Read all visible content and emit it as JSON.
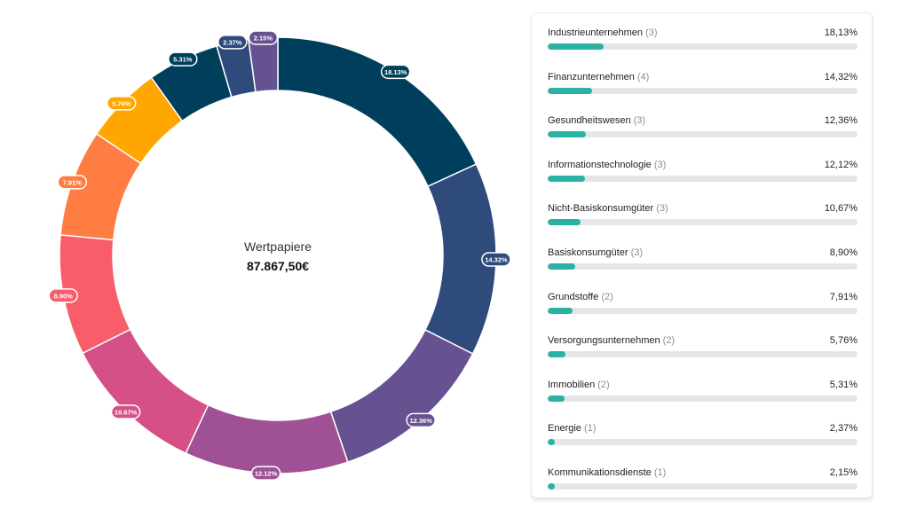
{
  "center": {
    "title": "Wertpapiere",
    "value": "87.867,50€"
  },
  "chart_data": {
    "type": "pie",
    "variant": "donut",
    "slices": [
      {
        "label": "18.13%",
        "value": 18.13,
        "color": "#003f5c"
      },
      {
        "label": "14.32%",
        "value": 14.32,
        "color": "#2f4b7c"
      },
      {
        "label": "12.36%",
        "value": 12.36,
        "color": "#665191"
      },
      {
        "label": "12.12%",
        "value": 12.12,
        "color": "#a05195"
      },
      {
        "label": "10.67%",
        "value": 10.67,
        "color": "#d45087"
      },
      {
        "label": "8.90%",
        "value": 8.9,
        "color": "#f95d6a"
      },
      {
        "label": "7.91%",
        "value": 7.91,
        "color": "#ff7c43"
      },
      {
        "label": "5.76%",
        "value": 5.76,
        "color": "#ffa600"
      },
      {
        "label": "5.31%",
        "value": 5.31,
        "color": "#003f5c"
      },
      {
        "label": "2.37%",
        "value": 2.37,
        "color": "#2f4b7c"
      },
      {
        "label": "2.15%",
        "value": 2.15,
        "color": "#665191"
      }
    ]
  },
  "sectors": {
    "bar_color": "#2ab3a3",
    "items": [
      {
        "name": "Industrieunternehmen",
        "count": "(3)",
        "value_text": "18,13%",
        "value": 18.13
      },
      {
        "name": "Finanzunternehmen",
        "count": "(4)",
        "value_text": "14,32%",
        "value": 14.32
      },
      {
        "name": "Gesundheitswesen",
        "count": "(3)",
        "value_text": "12,36%",
        "value": 12.36
      },
      {
        "name": "Informationstechnologie",
        "count": "(3)",
        "value_text": "12,12%",
        "value": 12.12
      },
      {
        "name": "Nicht-Basiskonsumgüter",
        "count": "(3)",
        "value_text": "10,67%",
        "value": 10.67
      },
      {
        "name": "Basiskonsumgüter",
        "count": "(3)",
        "value_text": "8,90%",
        "value": 8.9
      },
      {
        "name": "Grundstoffe",
        "count": "(2)",
        "value_text": "7,91%",
        "value": 7.91
      },
      {
        "name": "Versorgungsunternehmen",
        "count": "(2)",
        "value_text": "5,76%",
        "value": 5.76
      },
      {
        "name": "Immobilien",
        "count": "(2)",
        "value_text": "5,31%",
        "value": 5.31
      },
      {
        "name": "Energie",
        "count": "(1)",
        "value_text": "2,37%",
        "value": 2.37
      },
      {
        "name": "Kommunikationsdienste",
        "count": "(1)",
        "value_text": "2,15%",
        "value": 2.15
      }
    ]
  }
}
